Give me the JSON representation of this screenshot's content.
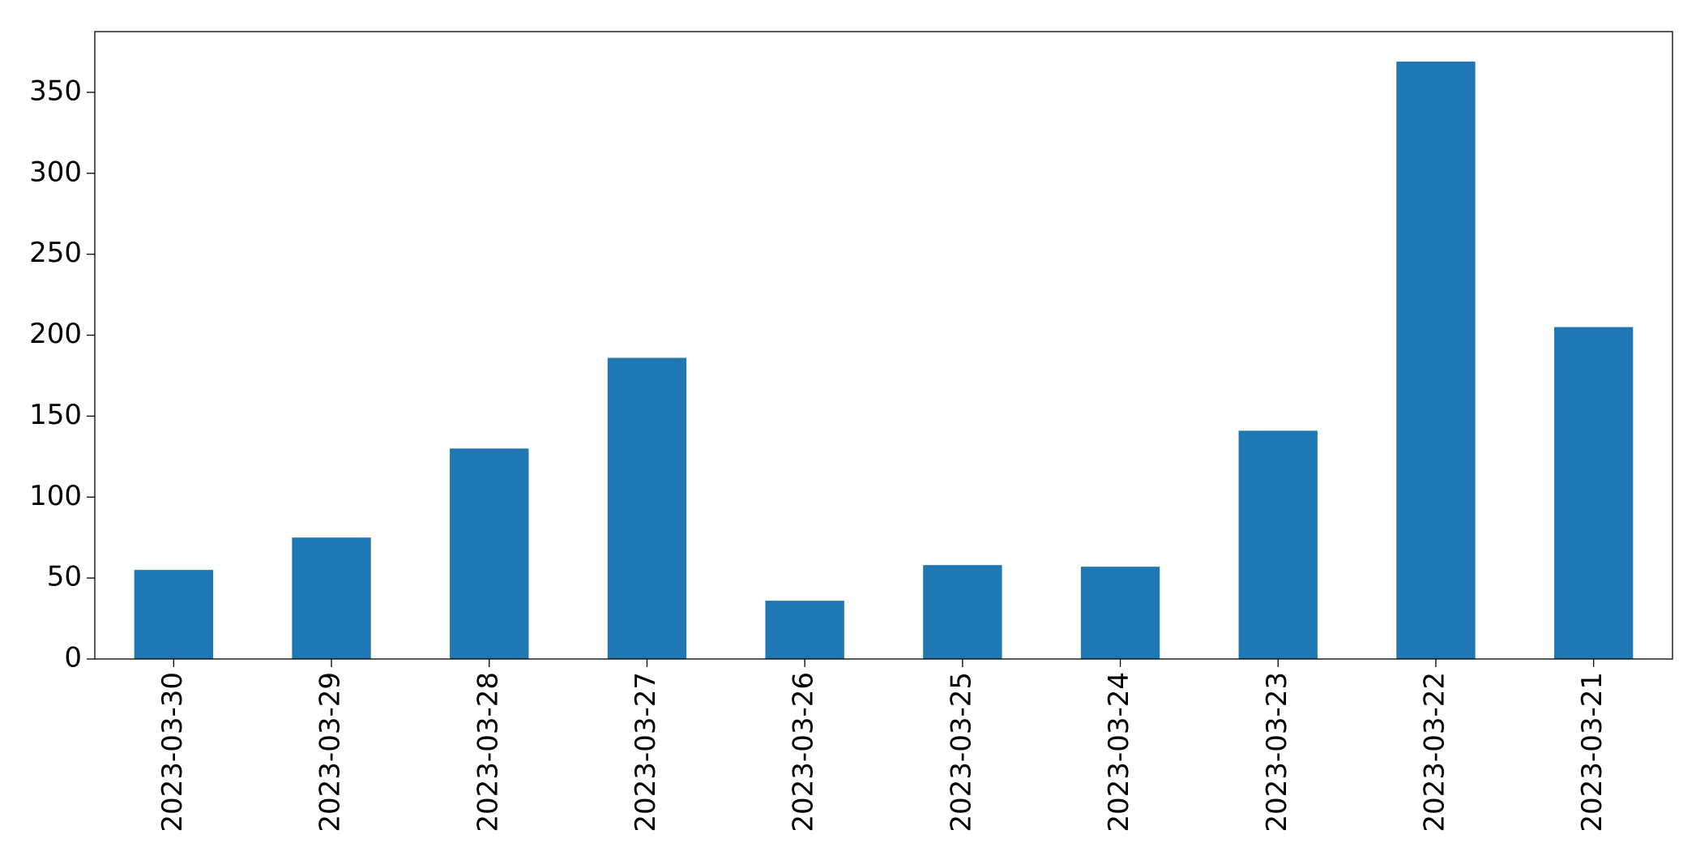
{
  "chart_data": {
    "type": "bar",
    "categories": [
      "2023-03-30",
      "2023-03-29",
      "2023-03-28",
      "2023-03-27",
      "2023-03-26",
      "2023-03-25",
      "2023-03-24",
      "2023-03-23",
      "2023-03-22",
      "2023-03-21"
    ],
    "values": [
      55,
      75,
      130,
      186,
      36,
      58,
      57,
      141,
      369,
      205
    ],
    "color": "#1f77b4",
    "ylim": [
      0,
      387.5
    ],
    "yticks": [
      0,
      50,
      100,
      150,
      200,
      250,
      300,
      350
    ],
    "grid": false
  }
}
